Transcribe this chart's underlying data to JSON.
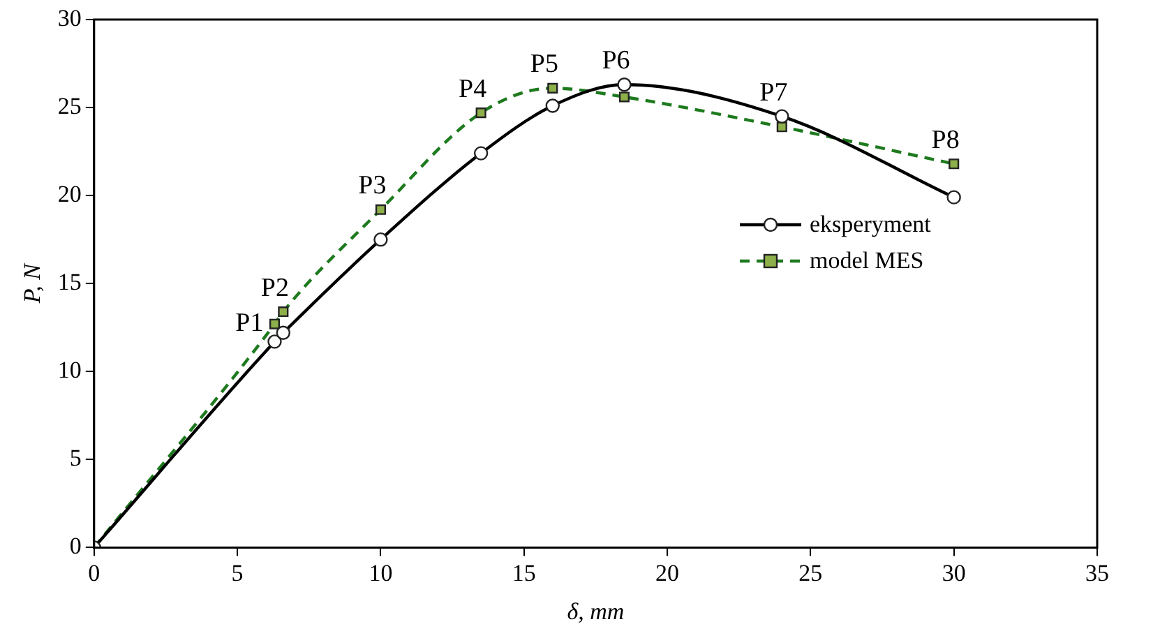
{
  "chart_data": {
    "type": "line",
    "xlabel": "δ, mm",
    "ylabel": "P, N",
    "xlim": [
      0,
      35
    ],
    "xticks": [
      0,
      5,
      10,
      15,
      20,
      25,
      30,
      35
    ],
    "ylim": [
      0,
      30
    ],
    "yticks": [
      0,
      5,
      10,
      15,
      20,
      25,
      30
    ],
    "grid": false,
    "legend": "right",
    "series": [
      {
        "name": "eksperyment",
        "color": "#000000",
        "marker": "circle",
        "line_style": "solid",
        "x": [
          0,
          6.3,
          6.6,
          10,
          13.5,
          16,
          18.5,
          24,
          30
        ],
        "values": [
          0,
          11.7,
          12.2,
          17.5,
          22.4,
          25.1,
          26.3,
          24.5,
          19.9
        ]
      },
      {
        "name": "model MES",
        "color": "#1e7a1e",
        "marker": "square",
        "line_style": "dashed",
        "x": [
          0,
          6.3,
          6.6,
          10,
          13.5,
          16,
          18.5,
          24,
          30
        ],
        "values": [
          0,
          12.7,
          13.4,
          19.2,
          24.7,
          26.1,
          25.6,
          23.9,
          21.8
        ]
      }
    ],
    "annotations": [
      {
        "text": "P1",
        "x": 6.3,
        "y": 12.7
      },
      {
        "text": "P2",
        "x": 6.6,
        "y": 13.4
      },
      {
        "text": "P3",
        "x": 10,
        "y": 19.2
      },
      {
        "text": "P4",
        "x": 13.5,
        "y": 24.7
      },
      {
        "text": "P5",
        "x": 16,
        "y": 26.1
      },
      {
        "text": "P6",
        "x": 18.5,
        "y": 26.3
      },
      {
        "text": "P7",
        "x": 24,
        "y": 24.5
      },
      {
        "text": "P8",
        "x": 30,
        "y": 21.8
      }
    ]
  }
}
